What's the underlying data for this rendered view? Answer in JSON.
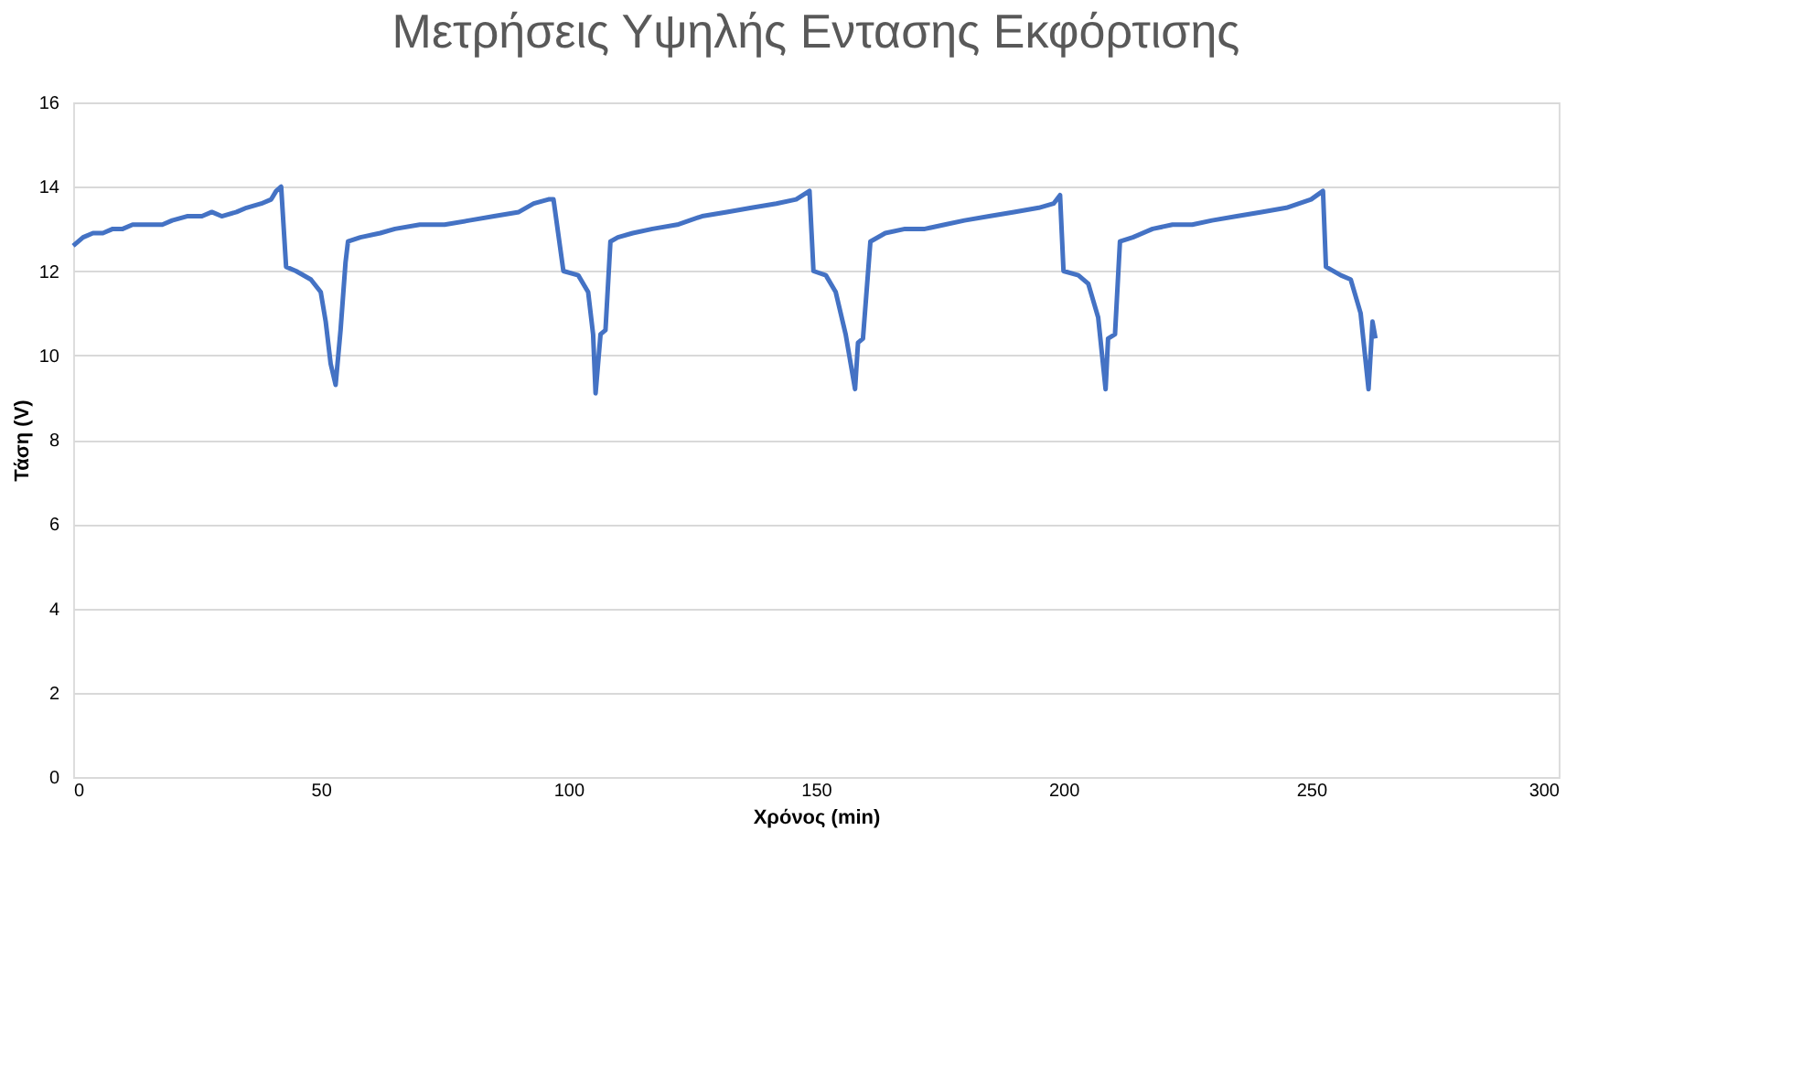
{
  "chart_data": {
    "type": "line",
    "title": "Μετρήσεις Υψηλής Εντασης Εκφόρτισης",
    "xlabel": "Χρόνος (min)",
    "ylabel": "Τάση (V)",
    "xlim": [
      0,
      300
    ],
    "xticks": [
      0,
      50,
      100,
      150,
      200,
      250,
      300
    ],
    "ylim": [
      0,
      16
    ],
    "yticks": [
      0,
      2,
      4,
      6,
      8,
      10,
      12,
      14,
      16
    ],
    "grid": "y",
    "legend": false,
    "marker": "none",
    "line_style": "solid",
    "series": [
      {
        "color": "#4472c4",
        "x": [
          0,
          2,
          4,
          6,
          8,
          10,
          12,
          15,
          18,
          20,
          23,
          26,
          28,
          30,
          33,
          35,
          38,
          40,
          41,
          42,
          43,
          45,
          48,
          50,
          51,
          52,
          53,
          54,
          55,
          55.5,
          58,
          62,
          65,
          70,
          75,
          80,
          85,
          90,
          93,
          96,
          97,
          99,
          102,
          104,
          105,
          105.5,
          106.5,
          107.5,
          108.5,
          110,
          113,
          117,
          122,
          127,
          132,
          137,
          142,
          146,
          148.7,
          149.5,
          152,
          154,
          156,
          157.9,
          158.5,
          159.5,
          161,
          164,
          168,
          172,
          176,
          180,
          185,
          190,
          195,
          198,
          199.3,
          200,
          203,
          205,
          207,
          208.5,
          209,
          210.4,
          211.4,
          214,
          218,
          222,
          226,
          230,
          235,
          240,
          245,
          250,
          252.4,
          253,
          256,
          258,
          260,
          261.6,
          262.4,
          263
        ],
        "values": [
          12.6,
          12.8,
          12.9,
          12.9,
          13.0,
          13.0,
          13.1,
          13.1,
          13.1,
          13.2,
          13.3,
          13.3,
          13.4,
          13.3,
          13.4,
          13.5,
          13.6,
          13.7,
          13.9,
          14.0,
          12.1,
          12.0,
          11.8,
          11.5,
          10.8,
          9.8,
          9.3,
          10.6,
          12.2,
          12.7,
          12.8,
          12.9,
          13.0,
          13.1,
          13.1,
          13.2,
          13.3,
          13.4,
          13.6,
          13.7,
          13.7,
          12.0,
          11.9,
          11.5,
          10.5,
          9.1,
          10.5,
          10.6,
          12.7,
          12.8,
          12.9,
          13.0,
          13.1,
          13.3,
          13.4,
          13.5,
          13.6,
          13.7,
          13.9,
          12.0,
          11.9,
          11.5,
          10.5,
          9.2,
          10.3,
          10.4,
          12.7,
          12.9,
          13.0,
          13.0,
          13.1,
          13.2,
          13.3,
          13.4,
          13.5,
          13.6,
          13.8,
          12.0,
          11.9,
          11.7,
          10.9,
          9.2,
          10.4,
          10.5,
          12.7,
          12.8,
          13.0,
          13.1,
          13.1,
          13.2,
          13.3,
          13.4,
          13.5,
          13.7,
          13.9,
          12.1,
          11.9,
          11.8,
          11.0,
          9.2,
          10.8,
          10.4
        ]
      }
    ]
  }
}
